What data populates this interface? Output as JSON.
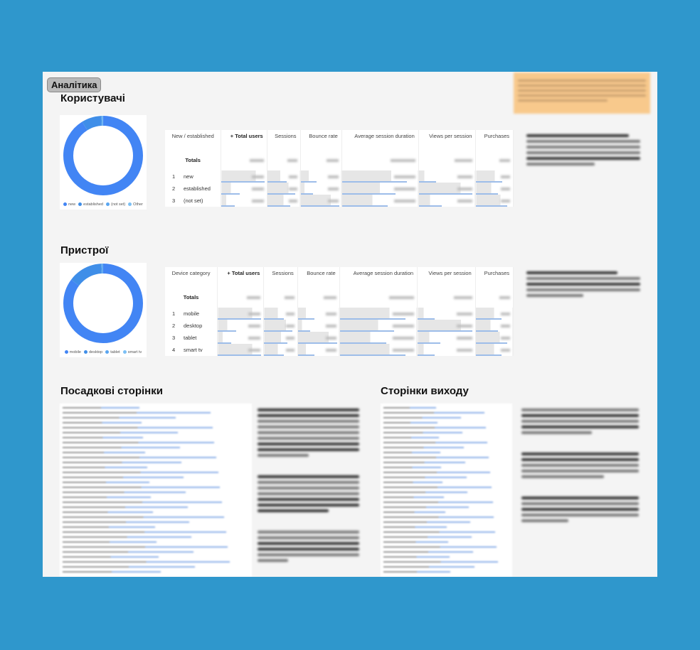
{
  "badge": "Аналітика",
  "note_color": "#f8c98c",
  "accent": "#4285f4",
  "users": {
    "title": "Користувачі",
    "donut": {
      "segments": [
        {
          "label": "new",
          "share": 91,
          "color": "#4285f4"
        },
        {
          "label": "established",
          "share": 8,
          "color": "#3f8ee8"
        },
        {
          "label": "(not set)",
          "share": 0.6,
          "color": "#5aa6f0"
        },
        {
          "label": "Other",
          "share": 0.4,
          "color": "#7cc0f5"
        }
      ]
    },
    "headers": [
      "New / established",
      "+ Total users",
      "Sessions",
      "Bounce rate",
      "Average session duration",
      "Views per session",
      "Purchases"
    ],
    "totals_label": "Totals",
    "rows": [
      {
        "n": "1",
        "label": "new"
      },
      {
        "n": "2",
        "label": "established"
      },
      {
        "n": "3",
        "label": "(not set)"
      }
    ]
  },
  "devices": {
    "title": "Пристрої",
    "donut": {
      "segments": [
        {
          "label": "mobile",
          "share": 85,
          "color": "#4285f4"
        },
        {
          "label": "desktop",
          "share": 14,
          "color": "#3f8ee8"
        },
        {
          "label": "tablet",
          "share": 0.8,
          "color": "#5aa6f0"
        },
        {
          "label": "smart tv",
          "share": 0.2,
          "color": "#7cc0f5"
        }
      ]
    },
    "headers": [
      "Device category",
      "+ Total users",
      "Sessions",
      "Bounce rate",
      "Average session duration",
      "Views per session",
      "Purchases"
    ],
    "totals_label": "Totals",
    "rows": [
      {
        "n": "1",
        "label": "mobile"
      },
      {
        "n": "2",
        "label": "desktop"
      },
      {
        "n": "3",
        "label": "tablet"
      },
      {
        "n": "4",
        "label": "smart tv"
      }
    ]
  },
  "landing": {
    "title": "Посадкові сторінки"
  },
  "exit": {
    "title": "Сторінки виходу"
  }
}
